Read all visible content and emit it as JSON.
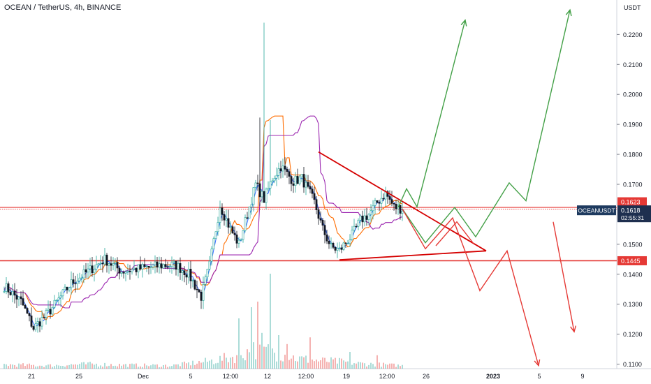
{
  "title": "OCEAN / TetherUS, 4h, BINANCE",
  "colors": {
    "up": "#26a69a",
    "down": "#131722",
    "candle_up_fill": "#ffffff",
    "blue_line": "#2962ff",
    "orange_line": "#ff6d00",
    "purple_line": "#9c27b0",
    "red": "#e53935",
    "green": "#43a047",
    "triangle": "#d50000"
  },
  "chart_data": {
    "type": "line",
    "symbol": "OCEANUSDT",
    "y_unit": "USDT",
    "ylim": [
      0.1085,
      0.2315
    ],
    "y_ticks": [
      "0.2200",
      "0.2100",
      "0.2000",
      "0.1900",
      "0.1800",
      "0.1700",
      "0.1500",
      "0.1400",
      "0.1300",
      "0.1200",
      "0.1100"
    ],
    "x_ticks": [
      "21",
      "25",
      "Dec",
      "5",
      "12:00",
      "12",
      "12:00",
      "19",
      "12:00",
      "26",
      "2023",
      "5",
      "9"
    ],
    "price_labels": [
      {
        "name": "resistance",
        "value": 0.1623,
        "text": "0.1623",
        "color": "#e53935"
      },
      {
        "name": "last",
        "value": 0.1618,
        "symbol": "OCEANUSDT",
        "text": "0.1618",
        "countdown": "02:55:31",
        "color": "#1e2f4f"
      },
      {
        "name": "support",
        "value": 0.1445,
        "text": "0.1445",
        "color": "#e53935"
      }
    ],
    "horizontal_lines": [
      {
        "name": "resistance",
        "value": 0.1623
      },
      {
        "name": "support",
        "value": 0.1445
      }
    ],
    "close_anchors": [
      [
        0,
        0.136
      ],
      [
        8,
        0.131
      ],
      [
        14,
        0.122
      ],
      [
        22,
        0.128
      ],
      [
        32,
        0.137
      ],
      [
        40,
        0.141
      ],
      [
        48,
        0.145
      ],
      [
        56,
        0.141
      ],
      [
        66,
        0.142
      ],
      [
        76,
        0.143
      ],
      [
        82,
        0.143
      ],
      [
        88,
        0.14
      ],
      [
        94,
        0.1325
      ],
      [
        98,
        0.143
      ],
      [
        103,
        0.163
      ],
      [
        108,
        0.155
      ],
      [
        112,
        0.15
      ],
      [
        116,
        0.16
      ],
      [
        120,
        0.17
      ],
      [
        124,
        0.165
      ],
      [
        128,
        0.172
      ],
      [
        132,
        0.176
      ],
      [
        138,
        0.171
      ],
      [
        142,
        0.172
      ],
      [
        148,
        0.164
      ],
      [
        152,
        0.155
      ],
      [
        156,
        0.149
      ],
      [
        160,
        0.148
      ],
      [
        166,
        0.153
      ],
      [
        170,
        0.158
      ],
      [
        174,
        0.16
      ],
      [
        178,
        0.164
      ],
      [
        182,
        0.167
      ],
      [
        186,
        0.1625
      ],
      [
        190,
        0.1618
      ]
    ],
    "volume_anchors": [
      [
        0,
        0.4
      ],
      [
        20,
        0.3
      ],
      [
        40,
        0.45
      ],
      [
        60,
        0.35
      ],
      [
        80,
        0.3
      ],
      [
        100,
        0.8
      ],
      [
        110,
        1.2
      ],
      [
        120,
        2.0
      ],
      [
        130,
        1.6
      ],
      [
        140,
        1.0
      ],
      [
        150,
        0.8
      ],
      [
        160,
        0.7
      ],
      [
        170,
        0.5
      ],
      [
        190,
        0.3
      ]
    ],
    "volume_spikes": [
      [
        112,
        4.5
      ],
      [
        118,
        5.5
      ],
      [
        121,
        6.0
      ],
      [
        123,
        3.2
      ],
      [
        127,
        8.5
      ],
      [
        131,
        3.0
      ],
      [
        135,
        2.2
      ],
      [
        146,
        2.8
      ],
      [
        165,
        1.5
      ],
      [
        178,
        1.2
      ]
    ],
    "projection_green": [
      [
        [
          188,
          0.1623
        ],
        [
          192,
          0.1685
        ],
        [
          197,
          0.1625
        ],
        [
          220,
          0.2248
        ]
      ],
      [
        [
          190,
          0.1618
        ],
        [
          201,
          0.1505
        ],
        [
          215,
          0.1623
        ],
        [
          225,
          0.1525
        ],
        [
          241,
          0.1705
        ],
        [
          249,
          0.1645
        ],
        [
          270,
          0.2282
        ]
      ]
    ],
    "projection_red": [
      [
        [
          190,
          0.1618
        ],
        [
          201,
          0.1485
        ],
        [
          214,
          0.1588
        ],
        [
          227,
          0.1345
        ],
        [
          240,
          0.1478
        ],
        [
          255,
          0.1095
        ]
      ],
      [
        [
          206,
          0.1495
        ],
        [
          216,
          0.1575
        ],
        [
          224,
          0.1502
        ]
      ],
      [
        [
          262,
          0.1575
        ],
        [
          272,
          0.1208
        ]
      ]
    ],
    "triangle": {
      "apex": [
        230,
        0.1478
      ],
      "upper_start": [
        150,
        0.1808
      ],
      "lower_start": [
        160,
        0.1448
      ]
    }
  }
}
